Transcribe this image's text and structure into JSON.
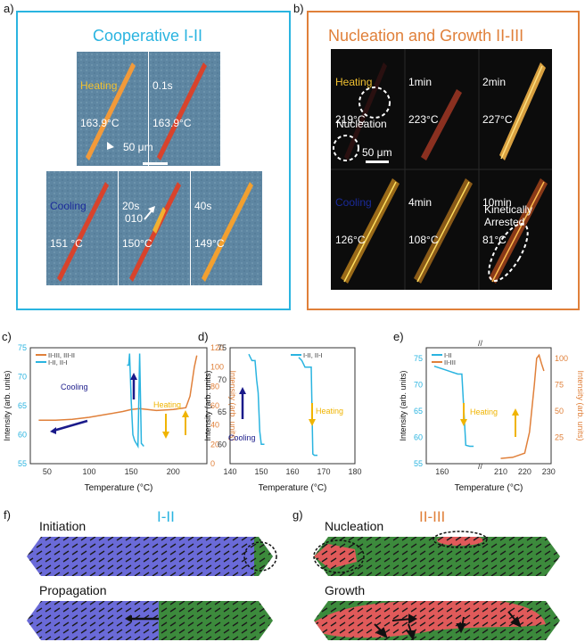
{
  "panels": {
    "a": {
      "letter": "a)",
      "title": "Cooperative I-II",
      "tiles": [
        {
          "l1": "Heating",
          "l2": "163.9°C",
          "c1": "#f0c030"
        },
        {
          "l1": "0.1s",
          "l2": "163.9°C",
          "c1": "#ffffff"
        },
        {
          "l1": "Cooling",
          "l2": "151 °C",
          "c1": "#1a2a9a"
        },
        {
          "l1": "20s",
          "l2": "150°C",
          "c1": "#ffffff"
        },
        {
          "l1": "40s",
          "l2": "149°C",
          "c1": "#ffffff"
        }
      ],
      "scalebar": "50 μm",
      "direction": "010"
    },
    "b": {
      "letter": "b)",
      "title": "Nucleation and Growth II-III",
      "tiles": [
        {
          "l1": "Heating",
          "l2": "219°C",
          "c1": "#f0c030"
        },
        {
          "l1": "1min",
          "l2": "223°C",
          "c1": "#ffffff"
        },
        {
          "l1": "2min",
          "l2": "227°C",
          "c1": "#ffffff"
        },
        {
          "l1": "Cooling",
          "l2": "126°C",
          "c1": "#1a2a9a"
        },
        {
          "l1": "4min",
          "l2": "108°C",
          "c1": "#ffffff"
        },
        {
          "l1": "10min",
          "l2": "81°C",
          "c1": "#ffffff"
        }
      ],
      "nucleation": "Nucleation",
      "scalebar": "50 μm",
      "arrested": "Kinetically\nArrested"
    },
    "c": {
      "letter": "c)"
    },
    "d": {
      "letter": "d)"
    },
    "e": {
      "letter": "e)"
    },
    "f": {
      "letter": "f)",
      "title": "I-II",
      "label1": "Initiation",
      "label2": "Propagation"
    },
    "g": {
      "letter": "g)",
      "title": "II-III",
      "label1": "Nucleation",
      "label2": "Growth"
    }
  },
  "colors": {
    "phase_I": "#6a6ad8",
    "phase_II": "#3c8a3c",
    "phase_III": "#e05a5a",
    "cyan": "#2ab4e0",
    "orange": "#e0803a",
    "navy": "#1a1a8a",
    "gold": "#f0b400"
  },
  "chart_data": [
    {
      "type": "line",
      "panel": "c",
      "xlabel": "Temperature (°C)",
      "ylabel_left": "Intensity (arb. units)",
      "ylabel_right": "Intensity (arb. units)",
      "xticks": [
        "50",
        "100",
        "150",
        "200"
      ],
      "yticks_left": [
        "55",
        "60",
        "65",
        "70",
        "75"
      ],
      "yticks_right": [
        "0",
        "20",
        "40",
        "60",
        "80",
        "100",
        "120"
      ],
      "xlim": [
        30,
        240
      ],
      "ylim_left": [
        55,
        75
      ],
      "ylim_right": [
        0,
        120
      ],
      "annotations": [
        "Cooling",
        "Heating"
      ],
      "series": [
        {
          "name": "II-III, III-II",
          "axis": "right",
          "x": [
            40,
            60,
            80,
            100,
            120,
            140,
            150,
            160,
            180,
            200,
            215,
            220,
            225,
            228
          ],
          "y": [
            45,
            45,
            46,
            48,
            51,
            54,
            56,
            57,
            55,
            56,
            58,
            70,
            100,
            112
          ]
        },
        {
          "name": "I-II, II-I",
          "axis": "left",
          "x": [
            145,
            147,
            148,
            149,
            150,
            152,
            154,
            156,
            158,
            160,
            162,
            165
          ],
          "y": [
            72,
            72,
            74,
            70,
            66,
            60,
            59,
            58.5,
            58,
            74,
            58.5,
            58
          ]
        }
      ]
    },
    {
      "type": "line",
      "panel": "d",
      "xlabel": "Temperature (°C)",
      "ylabel": "Intensity (arb. units)",
      "xticks": [
        "140",
        "150",
        "160",
        "170",
        "180"
      ],
      "yticks": [
        "60",
        "65",
        "70",
        "75"
      ],
      "xlim": [
        140,
        180
      ],
      "ylim": [
        57,
        75
      ],
      "annotations": [
        "Cooling",
        "Heating"
      ],
      "series": [
        {
          "name": "I-II, II-I",
          "segment": "cooling",
          "x": [
            146,
            147,
            148,
            148.5,
            149,
            149.5,
            150,
            151
          ],
          "y": [
            74,
            73,
            73,
            70,
            68,
            62,
            60,
            60
          ]
        },
        {
          "name": "",
          "segment": "heating",
          "x": [
            162,
            163,
            164,
            165,
            166,
            166.5,
            167,
            168
          ],
          "y": [
            73.5,
            73,
            72,
            72,
            72,
            58.5,
            58.3,
            58.3
          ]
        }
      ]
    },
    {
      "type": "line",
      "panel": "e",
      "xlabel": "Temperature (°C)",
      "ylabel_left": "Intensity (arb. units)",
      "ylabel_right": "Intensity (arb. units)",
      "xticks": [
        "160",
        "210",
        "220",
        "230"
      ],
      "yticks_left": [
        "55",
        "60",
        "65",
        "70",
        "75"
      ],
      "yticks_right": [
        "25",
        "50",
        "75",
        "100"
      ],
      "ylim_left": [
        55,
        77
      ],
      "ylim_right": [
        0,
        110
      ],
      "annotations": [
        "Heating"
      ],
      "series": [
        {
          "name": "I-II",
          "axis": "left",
          "x": [
            158,
            160,
            162,
            164,
            165,
            166,
            167,
            168
          ],
          "y": [
            73.5,
            73,
            72.5,
            72,
            72,
            58.5,
            58.3,
            58.3
          ]
        },
        {
          "name": "II-III",
          "axis": "right",
          "x": [
            210,
            215,
            220,
            222,
            224,
            225,
            226,
            227,
            228
          ],
          "y": [
            5,
            6,
            10,
            30,
            75,
            100,
            103,
            95,
            88
          ]
        }
      ]
    }
  ]
}
